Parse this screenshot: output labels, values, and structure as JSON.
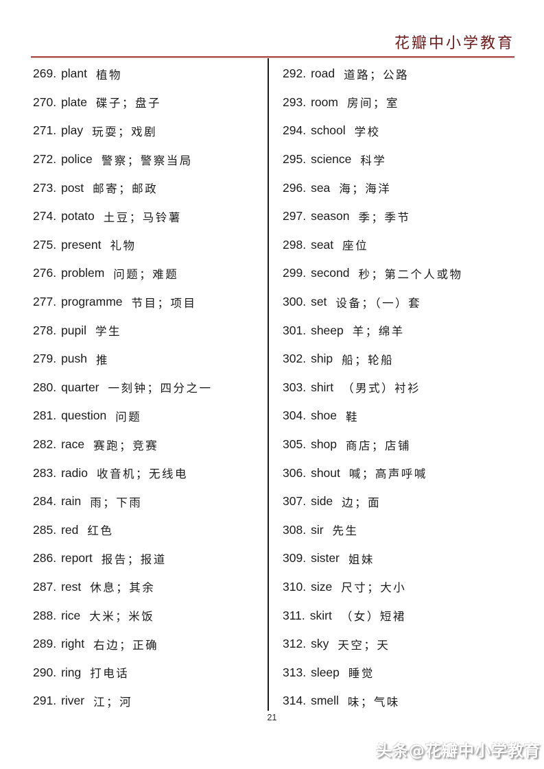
{
  "header": {
    "title": "花瓣中小学教育",
    "title_color": "#6e1b1b",
    "rule_color": "#a94442"
  },
  "columns": {
    "left": [
      {
        "num": "269.",
        "word": "plant",
        "meaning": "植物"
      },
      {
        "num": "270.",
        "word": "plate",
        "meaning": "碟子；盘子"
      },
      {
        "num": "271.",
        "word": "play",
        "meaning": "玩耍；戏剧"
      },
      {
        "num": "272.",
        "word": "police",
        "meaning": "警察；警察当局"
      },
      {
        "num": "273.",
        "word": "post",
        "meaning": "邮寄；邮政"
      },
      {
        "num": "274.",
        "word": "potato",
        "meaning": "土豆；马铃薯"
      },
      {
        "num": "275.",
        "word": "present",
        "meaning": "礼物"
      },
      {
        "num": "276.",
        "word": "problem",
        "meaning": "问题；难题"
      },
      {
        "num": "277.",
        "word": "programme",
        "meaning": "节目；项目"
      },
      {
        "num": "278.",
        "word": "pupil",
        "meaning": "学生"
      },
      {
        "num": "279.",
        "word": "push",
        "meaning": "推"
      },
      {
        "num": "280.",
        "word": "quarter",
        "meaning": "一刻钟；四分之一"
      },
      {
        "num": "281.",
        "word": "question",
        "meaning": "问题"
      },
      {
        "num": "282.",
        "word": "race",
        "meaning": "赛跑；竞赛"
      },
      {
        "num": "283.",
        "word": "radio",
        "meaning": "收音机；无线电"
      },
      {
        "num": "284.",
        "word": "rain",
        "meaning": "雨；下雨"
      },
      {
        "num": "285.",
        "word": "red",
        "meaning": "红色"
      },
      {
        "num": "286.",
        "word": "report",
        "meaning": "报告；报道"
      },
      {
        "num": "287.",
        "word": "rest",
        "meaning": "休息；其余"
      },
      {
        "num": "288.",
        "word": "rice",
        "meaning": "大米；米饭"
      },
      {
        "num": "289.",
        "word": "right",
        "meaning": "右边；正确"
      },
      {
        "num": "290.",
        "word": "ring",
        "meaning": "打电话"
      },
      {
        "num": "291.",
        "word": "river",
        "meaning": "江；河"
      }
    ],
    "right": [
      {
        "num": "292.",
        "word": "road",
        "meaning": "道路；公路"
      },
      {
        "num": "293.",
        "word": "room",
        "meaning": "房间；室"
      },
      {
        "num": "294.",
        "word": "school",
        "meaning": "学校"
      },
      {
        "num": "295.",
        "word": "science",
        "meaning": "科学"
      },
      {
        "num": "296.",
        "word": "sea",
        "meaning": "海；海洋"
      },
      {
        "num": "297.",
        "word": "season",
        "meaning": "季；季节"
      },
      {
        "num": "298.",
        "word": "seat",
        "meaning": "座位"
      },
      {
        "num": "299.",
        "word": "second",
        "meaning": "秒；第二个人或物"
      },
      {
        "num": "300.",
        "word": "set",
        "meaning": "设备；（一）套"
      },
      {
        "num": "301.",
        "word": "sheep",
        "meaning": "羊；绵羊"
      },
      {
        "num": "302.",
        "word": "ship",
        "meaning": "船；轮船"
      },
      {
        "num": "303.",
        "word": "shirt",
        "meaning": "（男式）衬衫"
      },
      {
        "num": "304.",
        "word": "shoe",
        "meaning": "鞋"
      },
      {
        "num": "305.",
        "word": "shop",
        "meaning": "商店；店铺"
      },
      {
        "num": "306.",
        "word": "shout",
        "meaning": "喊；高声呼喊"
      },
      {
        "num": "307.",
        "word": "side",
        "meaning": "边；面"
      },
      {
        "num": "308.",
        "word": "sir",
        "meaning": "先生"
      },
      {
        "num": "309.",
        "word": "sister",
        "meaning": "姐妹"
      },
      {
        "num": "310.",
        "word": "size",
        "meaning": "尺寸；大小"
      },
      {
        "num": "311.",
        "word": "skirt",
        "meaning": "（女）短裙"
      },
      {
        "num": "312.",
        "word": "sky",
        "meaning": "天空；天"
      },
      {
        "num": "313.",
        "word": "sleep",
        "meaning": "睡觉"
      },
      {
        "num": "314.",
        "word": "smell",
        "meaning": "味；气味"
      }
    ]
  },
  "footer": {
    "page_number": "21",
    "watermark": "头条@花瓣中小学教育"
  }
}
